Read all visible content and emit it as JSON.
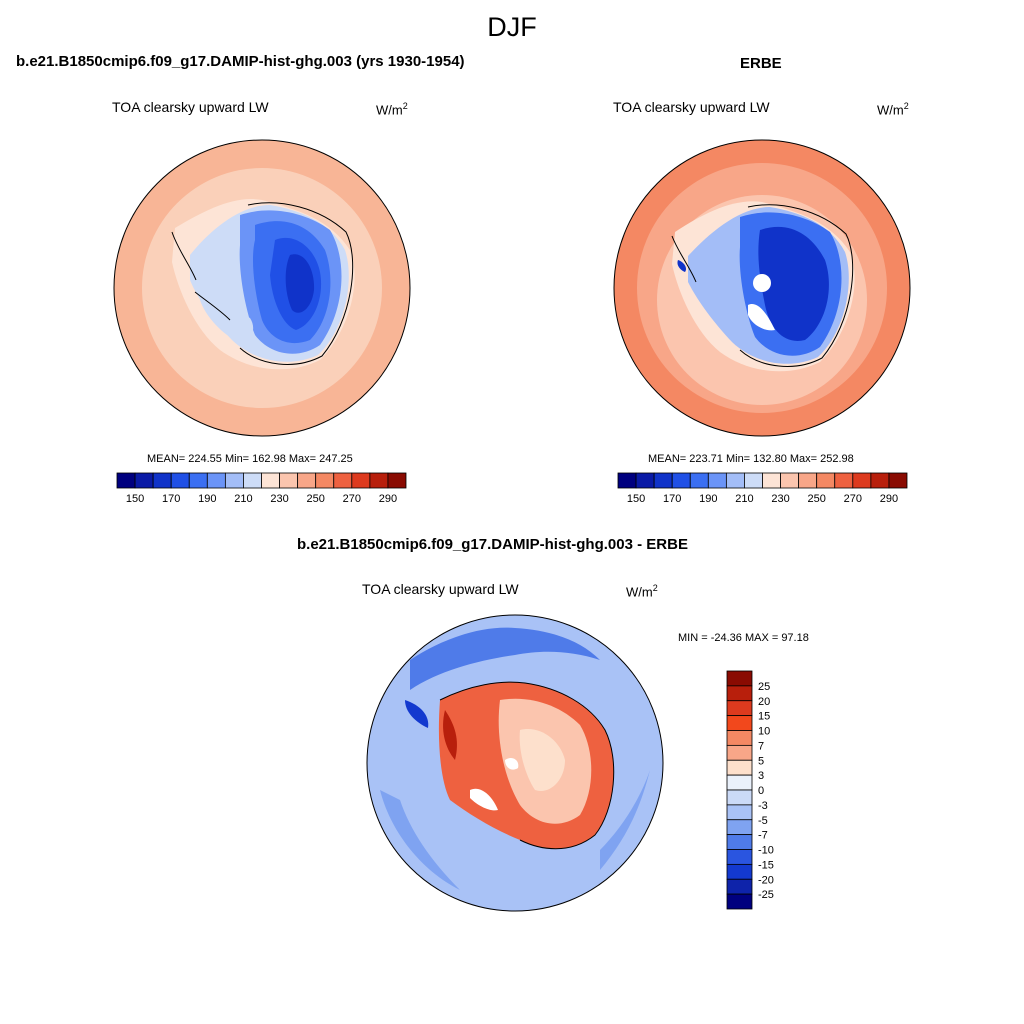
{
  "season": "DJF",
  "panels": {
    "model": {
      "title": "b.e21.B1850cmip6.f09_g17.DAMIP-hist-ghg.003 (yrs 1930-1954)",
      "variable": "TOA clearsky upward LW",
      "units": "W/m",
      "units_exp": "2",
      "stats": "MEAN= 224.55  Min= 162.98  Max= 247.25"
    },
    "obs": {
      "title": "ERBE",
      "variable": "TOA clearsky upward LW",
      "units": "W/m",
      "units_exp": "2",
      "stats": "MEAN= 223.71  Min= 132.80  Max= 252.98"
    },
    "diff": {
      "title": "b.e21.B1850cmip6.f09_g17.DAMIP-hist-ghg.003 - ERBE",
      "variable": "TOA clearsky upward LW",
      "units": "W/m",
      "units_exp": "2",
      "stats": "MIN = -24.36 MAX =  97.18"
    }
  },
  "colorbar_abs": {
    "colors": [
      "#00007f",
      "#0a1aa6",
      "#1033c9",
      "#2050e6",
      "#3b6ff2",
      "#6b94f7",
      "#a3bdf7",
      "#cddcf7",
      "#fde4d6",
      "#fbc5ae",
      "#f8a688",
      "#f48863",
      "#ee6140",
      "#dd3a1e",
      "#b81f0c",
      "#8a0b02"
    ],
    "labels": [
      "150",
      "170",
      "190",
      "210",
      "230",
      "250",
      "270",
      "290"
    ]
  },
  "colorbar_diff": {
    "colors": [
      "#8a0b02",
      "#b81f0c",
      "#dd3a1e",
      "#f2481c",
      "#f48863",
      "#f8a688",
      "#fde0cc",
      "#eaf1fb",
      "#cbdaf7",
      "#a9c2f6",
      "#7fa3f1",
      "#4f7be9",
      "#2a55e0",
      "#1339cf",
      "#0e23aa",
      "#00007f"
    ],
    "labels": [
      "25",
      "20",
      "15",
      "10",
      "7",
      "5",
      "3",
      "0",
      "-3",
      "-5",
      "-7",
      "-10",
      "-15",
      "-20",
      "-25"
    ]
  }
}
